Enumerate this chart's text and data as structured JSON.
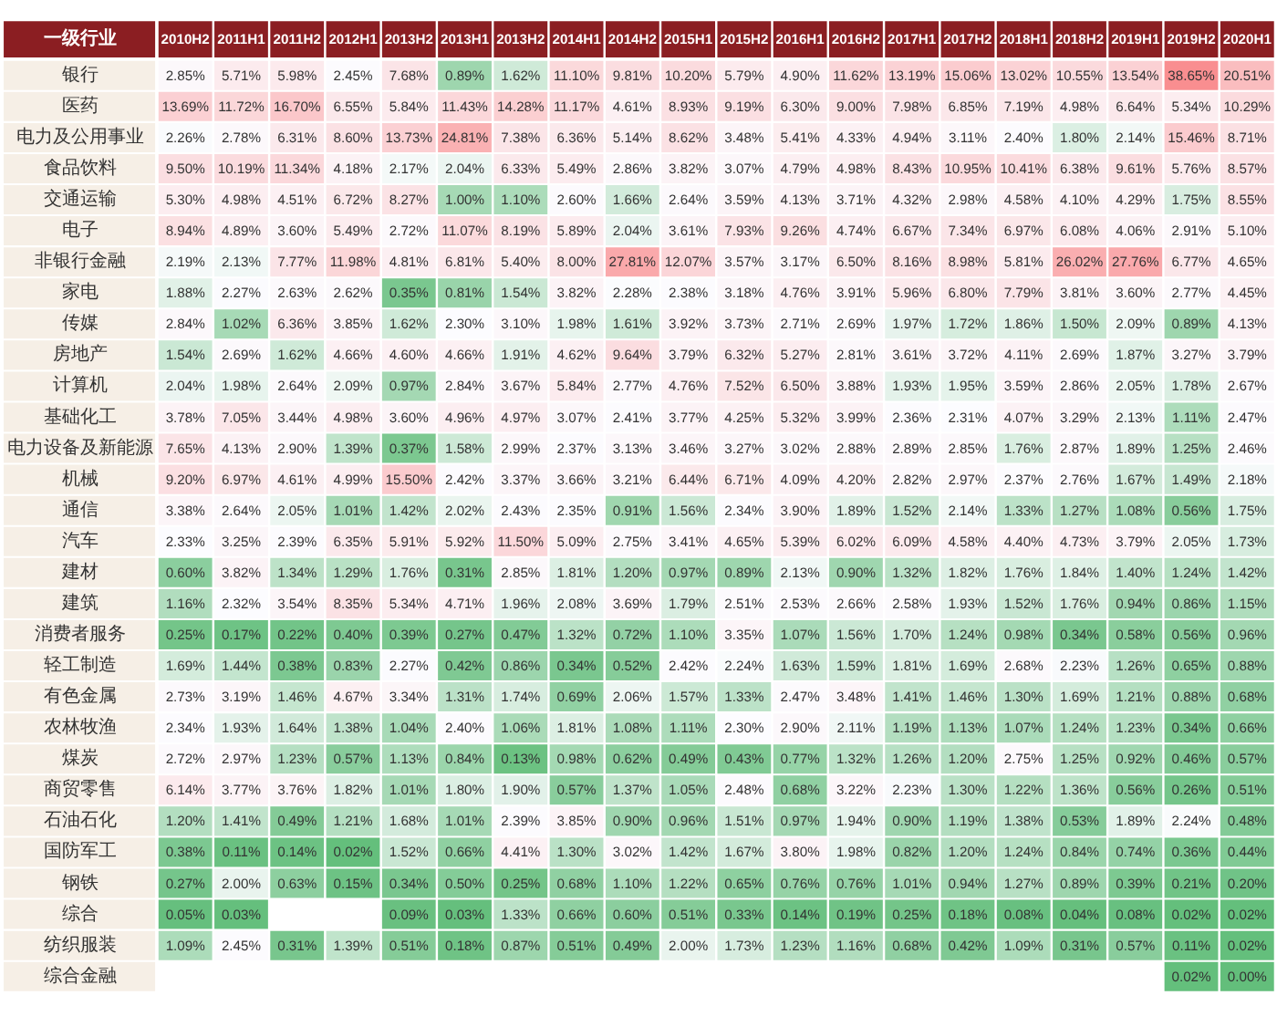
{
  "chart_data": {
    "type": "heatmap",
    "ylabel": "一级行业",
    "categories": [
      "2010H2",
      "2011H1",
      "2011H2",
      "2012H1",
      "2013H2",
      "2013H1",
      "2013H2",
      "2014H1",
      "2014H2",
      "2015H1",
      "2015H2",
      "2016H1",
      "2016H2",
      "2017H1",
      "2017H2",
      "2018H1",
      "2018H2",
      "2019H1",
      "2019H2",
      "2020H1"
    ],
    "y_categories": [
      "银行",
      "医药",
      "电力及公用事业",
      "食品饮料",
      "交通运输",
      "电子",
      "非银行金融",
      "家电",
      "传媒",
      "房地产",
      "计算机",
      "基础化工",
      "电力设备及新能源",
      "机械",
      "通信",
      "汽车",
      "建材",
      "建筑",
      "消费者服务",
      "轻工制造",
      "有色金属",
      "农林牧渔",
      "煤炭",
      "商贸零售",
      "石油石化",
      "国防军工",
      "钢铁",
      "综合",
      "纺织服装",
      "综合金融"
    ],
    "cells": [
      [
        2.85,
        5.71,
        5.98,
        2.45,
        7.68,
        0.89,
        1.62,
        11.1,
        9.81,
        10.2,
        5.79,
        4.9,
        11.62,
        13.19,
        15.06,
        13.02,
        10.55,
        13.54,
        38.65,
        20.51
      ],
      [
        13.69,
        11.72,
        16.7,
        6.55,
        5.84,
        11.43,
        14.28,
        11.17,
        4.61,
        8.93,
        9.19,
        6.3,
        9.0,
        7.98,
        6.85,
        7.19,
        4.98,
        6.64,
        5.34,
        10.29
      ],
      [
        2.26,
        2.78,
        6.31,
        8.6,
        13.73,
        24.81,
        7.38,
        6.36,
        5.14,
        8.62,
        3.48,
        5.41,
        4.33,
        4.94,
        3.11,
        2.4,
        1.8,
        2.14,
        15.46,
        8.71
      ],
      [
        9.5,
        10.19,
        11.34,
        4.18,
        2.17,
        2.04,
        6.33,
        5.49,
        2.86,
        3.82,
        3.07,
        4.79,
        4.98,
        8.43,
        10.95,
        10.41,
        6.38,
        9.61,
        5.76,
        8.57
      ],
      [
        5.3,
        4.98,
        4.51,
        6.72,
        8.27,
        1.0,
        1.1,
        2.6,
        1.66,
        2.64,
        3.59,
        4.13,
        3.71,
        4.32,
        2.98,
        4.58,
        4.1,
        4.29,
        1.75,
        8.55
      ],
      [
        8.94,
        4.89,
        3.6,
        5.49,
        2.72,
        11.07,
        8.19,
        5.89,
        2.04,
        3.61,
        7.93,
        9.26,
        4.74,
        6.67,
        7.34,
        6.97,
        6.08,
        4.06,
        2.91,
        5.1
      ],
      [
        2.19,
        2.13,
        7.77,
        11.98,
        4.81,
        6.81,
        5.4,
        8.0,
        27.81,
        12.07,
        3.57,
        3.17,
        6.5,
        8.16,
        8.98,
        5.81,
        26.02,
        27.76,
        6.77,
        4.65
      ],
      [
        1.88,
        2.27,
        2.63,
        2.62,
        0.35,
        0.81,
        1.54,
        3.82,
        2.28,
        2.38,
        3.18,
        4.76,
        3.91,
        5.96,
        6.8,
        7.79,
        3.81,
        3.6,
        2.77,
        4.45
      ],
      [
        2.84,
        1.02,
        6.36,
        3.85,
        1.62,
        2.3,
        3.1,
        1.98,
        1.61,
        3.92,
        3.73,
        2.71,
        2.69,
        1.97,
        1.72,
        1.86,
        1.5,
        2.09,
        0.89,
        4.13
      ],
      [
        1.54,
        2.69,
        1.62,
        4.66,
        4.6,
        4.66,
        1.91,
        4.62,
        9.64,
        3.79,
        6.32,
        5.27,
        2.81,
        3.61,
        3.72,
        4.11,
        2.69,
        1.87,
        3.27,
        3.79
      ],
      [
        2.04,
        1.98,
        2.64,
        2.09,
        0.97,
        2.84,
        3.67,
        5.84,
        2.77,
        4.76,
        7.52,
        6.5,
        3.88,
        1.93,
        1.95,
        3.59,
        2.86,
        2.05,
        1.78,
        2.67
      ],
      [
        3.78,
        7.05,
        3.44,
        4.98,
        3.6,
        4.96,
        4.97,
        3.07,
        2.41,
        3.77,
        4.25,
        5.32,
        3.99,
        2.36,
        2.31,
        4.07,
        3.29,
        2.13,
        1.11,
        2.47
      ],
      [
        7.65,
        4.13,
        2.9,
        1.39,
        0.37,
        1.58,
        2.99,
        2.37,
        3.13,
        3.46,
        3.27,
        3.02,
        2.88,
        2.89,
        2.85,
        1.76,
        2.87,
        1.89,
        1.25,
        2.46
      ],
      [
        9.2,
        6.97,
        4.61,
        4.99,
        15.5,
        2.42,
        3.37,
        3.66,
        3.21,
        6.44,
        6.71,
        4.09,
        4.2,
        2.82,
        2.97,
        2.37,
        2.76,
        1.67,
        1.49,
        2.18
      ],
      [
        3.38,
        2.64,
        2.05,
        1.01,
        1.42,
        2.02,
        2.43,
        2.35,
        0.91,
        1.56,
        2.34,
        3.9,
        1.89,
        1.52,
        2.14,
        1.33,
        1.27,
        1.08,
        0.56,
        1.75
      ],
      [
        2.33,
        3.25,
        2.39,
        6.35,
        5.91,
        5.92,
        11.5,
        5.09,
        2.75,
        3.41,
        4.65,
        5.39,
        6.02,
        6.09,
        4.58,
        4.4,
        4.73,
        3.79,
        2.05,
        1.73
      ],
      [
        0.6,
        3.82,
        1.34,
        1.29,
        1.76,
        0.31,
        2.85,
        1.81,
        1.2,
        0.97,
        0.89,
        2.13,
        0.9,
        1.32,
        1.82,
        1.76,
        1.84,
        1.4,
        1.24,
        1.42
      ],
      [
        1.16,
        2.32,
        3.54,
        8.35,
        5.34,
        4.71,
        1.96,
        2.08,
        3.69,
        1.79,
        2.51,
        2.53,
        2.66,
        2.58,
        1.93,
        1.52,
        1.76,
        0.94,
        0.86,
        1.15
      ],
      [
        0.25,
        0.17,
        0.22,
        0.4,
        0.39,
        0.27,
        0.47,
        1.32,
        0.72,
        1.1,
        3.35,
        1.07,
        1.56,
        1.7,
        1.24,
        0.98,
        0.34,
        0.58,
        0.56,
        0.96
      ],
      [
        1.69,
        1.44,
        0.38,
        0.83,
        2.27,
        0.42,
        0.86,
        0.34,
        0.52,
        2.42,
        2.24,
        1.63,
        1.59,
        1.81,
        1.69,
        2.68,
        2.23,
        1.26,
        0.65,
        0.88
      ],
      [
        2.73,
        3.19,
        1.46,
        4.67,
        3.34,
        1.31,
        1.74,
        0.69,
        2.06,
        1.57,
        1.33,
        2.47,
        3.48,
        1.41,
        1.46,
        1.3,
        1.69,
        1.21,
        0.88,
        0.68
      ],
      [
        2.34,
        1.93,
        1.64,
        1.38,
        1.04,
        2.4,
        1.06,
        1.81,
        1.08,
        1.11,
        2.3,
        2.9,
        2.11,
        1.19,
        1.13,
        1.07,
        1.24,
        1.23,
        0.34,
        0.66
      ],
      [
        2.72,
        2.97,
        1.23,
        0.57,
        1.13,
        0.84,
        0.13,
        0.98,
        0.62,
        0.49,
        0.43,
        0.77,
        1.32,
        1.26,
        1.2,
        2.75,
        1.25,
        0.92,
        0.46,
        0.57
      ],
      [
        6.14,
        3.77,
        3.76,
        1.82,
        1.01,
        1.8,
        1.9,
        0.57,
        1.37,
        1.05,
        2.48,
        0.68,
        3.22,
        2.23,
        1.3,
        1.22,
        1.36,
        0.56,
        0.26,
        0.51
      ],
      [
        1.2,
        1.41,
        0.49,
        1.21,
        1.68,
        1.01,
        2.39,
        3.85,
        0.9,
        0.96,
        1.51,
        0.97,
        1.94,
        0.9,
        1.19,
        1.38,
        0.53,
        1.89,
        2.24,
        0.48
      ],
      [
        0.38,
        0.11,
        0.14,
        0.02,
        1.52,
        0.66,
        4.41,
        1.3,
        3.02,
        1.42,
        1.67,
        3.8,
        1.98,
        0.82,
        1.2,
        1.24,
        0.84,
        0.74,
        0.36,
        0.44
      ],
      [
        0.27,
        2.0,
        0.63,
        0.15,
        0.34,
        0.5,
        0.25,
        0.68,
        1.1,
        1.22,
        0.65,
        0.76,
        0.76,
        1.01,
        0.94,
        1.27,
        0.89,
        0.39,
        0.21,
        0.2
      ],
      [
        0.05,
        0.03,
        null,
        null,
        0.09,
        0.03,
        1.33,
        0.66,
        0.6,
        0.51,
        0.33,
        0.14,
        0.19,
        0.25,
        0.18,
        0.08,
        0.04,
        0.08,
        0.02,
        0.02
      ],
      [
        1.09,
        2.45,
        0.31,
        1.39,
        0.51,
        0.18,
        0.87,
        0.51,
        0.49,
        2.0,
        1.73,
        1.23,
        1.16,
        0.68,
        0.42,
        1.09,
        0.31,
        0.57,
        0.11,
        0.02
      ],
      [
        null,
        null,
        null,
        null,
        null,
        null,
        null,
        null,
        null,
        null,
        null,
        null,
        null,
        null,
        null,
        null,
        null,
        null,
        0.02,
        0.0
      ]
    ],
    "cell_labels": [
      [
        "2.85%",
        "5.71%",
        "5.98%",
        "2.45%",
        "7.68%",
        "0.89%",
        "1.62%",
        "11.10%",
        "9.81%",
        "10.20%",
        "5.79%",
        "4.90%",
        "11.62%",
        "13.19%",
        "15.06%",
        "13.02%",
        "10.55%",
        "13.54%",
        "38.65%",
        "20.51%"
      ],
      [
        "13.69%",
        "11.72%",
        "16.70%",
        "6.55%",
        "5.84%",
        "11.43%",
        "14.28%",
        "11.17%",
        "4.61%",
        "8.93%",
        "9.19%",
        "6.30%",
        "9.00%",
        "7.98%",
        "6.85%",
        "7.19%",
        "4.98%",
        "6.64%",
        "5.34%",
        "10.29%"
      ],
      [
        "2.26%",
        "2.78%",
        "6.31%",
        "8.60%",
        "13.73%",
        "24.81%",
        "7.38%",
        "6.36%",
        "5.14%",
        "8.62%",
        "3.48%",
        "5.41%",
        "4.33%",
        "4.94%",
        "3.11%",
        "2.40%",
        "1.80%",
        "2.14%",
        "15.46%",
        "8.71%"
      ],
      [
        "9.50%",
        "10.19%",
        "11.34%",
        "4.18%",
        "2.17%",
        "2.04%",
        "6.33%",
        "5.49%",
        "2.86%",
        "3.82%",
        "3.07%",
        "4.79%",
        "4.98%",
        "8.43%",
        "10.95%",
        "10.41%",
        "6.38%",
        "9.61%",
        "5.76%",
        "8.57%"
      ],
      [
        "5.30%",
        "4.98%",
        "4.51%",
        "6.72%",
        "8.27%",
        "1.00%",
        "1.10%",
        "2.60%",
        "1.66%",
        "2.64%",
        "3.59%",
        "4.13%",
        "3.71%",
        "4.32%",
        "2.98%",
        "4.58%",
        "4.10%",
        "4.29%",
        "1.75%",
        "8.55%"
      ],
      [
        "8.94%",
        "4.89%",
        "3.60%",
        "5.49%",
        "2.72%",
        "11.07%",
        "8.19%",
        "5.89%",
        "2.04%",
        "3.61%",
        "7.93%",
        "9.26%",
        "4.74%",
        "6.67%",
        "7.34%",
        "6.97%",
        "6.08%",
        "4.06%",
        "2.91%",
        "5.10%"
      ],
      [
        "2.19%",
        "2.13%",
        "7.77%",
        "11.98%",
        "4.81%",
        "6.81%",
        "5.40%",
        "8.00%",
        "27.81%",
        "12.07%",
        "3.57%",
        "3.17%",
        "6.50%",
        "8.16%",
        "8.98%",
        "5.81%",
        "26.02%",
        "27.76%",
        "6.77%",
        "4.65%"
      ],
      [
        "1.88%",
        "2.27%",
        "2.63%",
        "2.62%",
        "0.35%",
        "0.81%",
        "1.54%",
        "3.82%",
        "2.28%",
        "2.38%",
        "3.18%",
        "4.76%",
        "3.91%",
        "5.96%",
        "6.80%",
        "7.79%",
        "3.81%",
        "3.60%",
        "2.77%",
        "4.45%"
      ],
      [
        "2.84%",
        "1.02%",
        "6.36%",
        "3.85%",
        "1.62%",
        "2.30%",
        "3.10%",
        "1.98%",
        "1.61%",
        "3.92%",
        "3.73%",
        "2.71%",
        "2.69%",
        "1.97%",
        "1.72%",
        "1.86%",
        "1.50%",
        "2.09%",
        "0.89%",
        "4.13%"
      ],
      [
        "1.54%",
        "2.69%",
        "1.62%",
        "4.66%",
        "4.60%",
        "4.66%",
        "1.91%",
        "4.62%",
        "9.64%",
        "3.79%",
        "6.32%",
        "5.27%",
        "2.81%",
        "3.61%",
        "3.72%",
        "4.11%",
        "2.69%",
        "1.87%",
        "3.27%",
        "3.79%"
      ],
      [
        "2.04%",
        "1.98%",
        "2.64%",
        "2.09%",
        "0.97%",
        "2.84%",
        "3.67%",
        "5.84%",
        "2.77%",
        "4.76%",
        "7.52%",
        "6.50%",
        "3.88%",
        "1.93%",
        "1.95%",
        "3.59%",
        "2.86%",
        "2.05%",
        "1.78%",
        "2.67%"
      ],
      [
        "3.78%",
        "7.05%",
        "3.44%",
        "4.98%",
        "3.60%",
        "4.96%",
        "4.97%",
        "3.07%",
        "2.41%",
        "3.77%",
        "4.25%",
        "5.32%",
        "3.99%",
        "2.36%",
        "2.31%",
        "4.07%",
        "3.29%",
        "2.13%",
        "1.11%",
        "2.47%"
      ],
      [
        "7.65%",
        "4.13%",
        "2.90%",
        "1.39%",
        "0.37%",
        "1.58%",
        "2.99%",
        "2.37%",
        "3.13%",
        "3.46%",
        "3.27%",
        "3.02%",
        "2.88%",
        "2.89%",
        "2.85%",
        "1.76%",
        "2.87%",
        "1.89%",
        "1.25%",
        "2.46%"
      ],
      [
        "9.20%",
        "6.97%",
        "4.61%",
        "4.99%",
        "15.50%",
        "2.42%",
        "3.37%",
        "3.66%",
        "3.21%",
        "6.44%",
        "6.71%",
        "4.09%",
        "4.20%",
        "2.82%",
        "2.97%",
        "2.37%",
        "2.76%",
        "1.67%",
        "1.49%",
        "2.18%"
      ],
      [
        "3.38%",
        "2.64%",
        "2.05%",
        "1.01%",
        "1.42%",
        "2.02%",
        "2.43%",
        "2.35%",
        "0.91%",
        "1.56%",
        "2.34%",
        "3.90%",
        "1.89%",
        "1.52%",
        "2.14%",
        "1.33%",
        "1.27%",
        "1.08%",
        "0.56%",
        "1.75%"
      ],
      [
        "2.33%",
        "3.25%",
        "2.39%",
        "6.35%",
        "5.91%",
        "5.92%",
        "11.50%",
        "5.09%",
        "2.75%",
        "3.41%",
        "4.65%",
        "5.39%",
        "6.02%",
        "6.09%",
        "4.58%",
        "4.40%",
        "4.73%",
        "3.79%",
        "2.05%",
        "1.73%"
      ],
      [
        "0.60%",
        "3.82%",
        "1.34%",
        "1.29%",
        "1.76%",
        "0.31%",
        "2.85%",
        "1.81%",
        "1.20%",
        "0.97%",
        "0.89%",
        "2.13%",
        "0.90%",
        "1.32%",
        "1.82%",
        "1.76%",
        "1.84%",
        "1.40%",
        "1.24%",
        "1.42%"
      ],
      [
        "1.16%",
        "2.32%",
        "3.54%",
        "8.35%",
        "5.34%",
        "4.71%",
        "1.96%",
        "2.08%",
        "3.69%",
        "1.79%",
        "2.51%",
        "2.53%",
        "2.66%",
        "2.58%",
        "1.93%",
        "1.52%",
        "1.76%",
        "0.94%",
        "0.86%",
        "1.15%"
      ],
      [
        "0.25%",
        "0.17%",
        "0.22%",
        "0.40%",
        "0.39%",
        "0.27%",
        "0.47%",
        "1.32%",
        "0.72%",
        "1.10%",
        "3.35%",
        "1.07%",
        "1.56%",
        "1.70%",
        "1.24%",
        "0.98%",
        "0.34%",
        "0.58%",
        "0.56%",
        "0.96%"
      ],
      [
        "1.69%",
        "1.44%",
        "0.38%",
        "0.83%",
        "2.27%",
        "0.42%",
        "0.86%",
        "0.34%",
        "0.52%",
        "2.42%",
        "2.24%",
        "1.63%",
        "1.59%",
        "1.81%",
        "1.69%",
        "2.68%",
        "2.23%",
        "1.26%",
        "0.65%",
        "0.88%"
      ],
      [
        "2.73%",
        "3.19%",
        "1.46%",
        "4.67%",
        "3.34%",
        "1.31%",
        "1.74%",
        "0.69%",
        "2.06%",
        "1.57%",
        "1.33%",
        "2.47%",
        "3.48%",
        "1.41%",
        "1.46%",
        "1.30%",
        "1.69%",
        "1.21%",
        "0.88%",
        "0.68%"
      ],
      [
        "2.34%",
        "1.93%",
        "1.64%",
        "1.38%",
        "1.04%",
        "2.40%",
        "1.06%",
        "1.81%",
        "1.08%",
        "1.11%",
        "2.30%",
        "2.90%",
        "2.11%",
        "1.19%",
        "1.13%",
        "1.07%",
        "1.24%",
        "1.23%",
        "0.34%",
        "0.66%"
      ],
      [
        "2.72%",
        "2.97%",
        "1.23%",
        "0.57%",
        "1.13%",
        "0.84%",
        "0.13%",
        "0.98%",
        "0.62%",
        "0.49%",
        "0.43%",
        "0.77%",
        "1.32%",
        "1.26%",
        "1.20%",
        "2.75%",
        "1.25%",
        "0.92%",
        "0.46%",
        "0.57%"
      ],
      [
        "6.14%",
        "3.77%",
        "3.76%",
        "1.82%",
        "1.01%",
        "1.80%",
        "1.90%",
        "0.57%",
        "1.37%",
        "1.05%",
        "2.48%",
        "0.68%",
        "3.22%",
        "2.23%",
        "1.30%",
        "1.22%",
        "1.36%",
        "0.56%",
        "0.26%",
        "0.51%"
      ],
      [
        "1.20%",
        "1.41%",
        "0.49%",
        "1.21%",
        "1.68%",
        "1.01%",
        "2.39%",
        "3.85%",
        "0.90%",
        "0.96%",
        "1.51%",
        "0.97%",
        "1.94%",
        "0.90%",
        "1.19%",
        "1.38%",
        "0.53%",
        "1.89%",
        "2.24%",
        "0.48%"
      ],
      [
        "0.38%",
        "0.11%",
        "0.14%",
        "0.02%",
        "1.52%",
        "0.66%",
        "4.41%",
        "1.30%",
        "3.02%",
        "1.42%",
        "1.67%",
        "3.80%",
        "1.98%",
        "0.82%",
        "1.20%",
        "1.24%",
        "0.84%",
        "0.74%",
        "0.36%",
        "0.44%"
      ],
      [
        "0.27%",
        "2.00%",
        "0.63%",
        "0.15%",
        "0.34%",
        "0.50%",
        "0.25%",
        "0.68%",
        "1.10%",
        "1.22%",
        "0.65%",
        "0.76%",
        "0.76%",
        "1.01%",
        "0.94%",
        "1.27%",
        "0.89%",
        "0.39%",
        "0.21%",
        "0.20%"
      ],
      [
        "0.05%",
        "0.03%",
        null,
        null,
        "0.09%",
        "0.03%",
        "1.33%",
        "0.66%",
        "0.60%",
        "0.51%",
        "0.33%",
        "0.14%",
        "0.19%",
        "0.25%",
        "0.18%",
        "0.08%",
        "0.04%",
        "0.08%",
        "0.02%",
        "0.02%"
      ],
      [
        "1.09%",
        "2.45%",
        "0.31%",
        "1.39%",
        "0.51%",
        "0.18%",
        "0.87%",
        "0.51%",
        "0.49%",
        "2.00%",
        "1.73%",
        "1.23%",
        "1.16%",
        "0.68%",
        "0.42%",
        "1.09%",
        "0.31%",
        "0.57%",
        "0.11%",
        "0.02%"
      ],
      [
        null,
        null,
        null,
        null,
        null,
        null,
        null,
        null,
        null,
        null,
        null,
        null,
        null,
        null,
        null,
        null,
        null,
        null,
        "0.02%",
        "0.00%"
      ]
    ]
  }
}
